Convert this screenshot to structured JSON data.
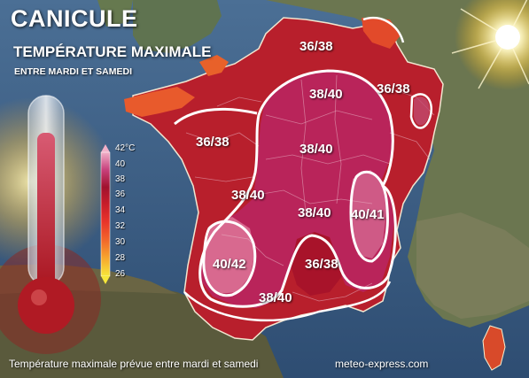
{
  "title": "CANICULE",
  "subtitle": "TEMPÉRATURE MAXIMALE",
  "tagline": "ENTRE MARDI ET SAMEDI",
  "footer_caption": "Température maximale prévue entre mardi et samedi",
  "footer_source": "meteo-express.com",
  "zones": [
    {
      "label": "36/38",
      "key": "north"
    },
    {
      "label": "36/38",
      "key": "northeast"
    },
    {
      "label": "38/40",
      "key": "paris"
    },
    {
      "label": "36/38",
      "key": "west"
    },
    {
      "label": "38/40",
      "key": "center"
    },
    {
      "label": "38/40",
      "key": "southwest-center"
    },
    {
      "label": "38/40",
      "key": "massif"
    },
    {
      "label": "40/41",
      "key": "rhone"
    },
    {
      "label": "40/42",
      "key": "aquitaine"
    },
    {
      "label": "36/38",
      "key": "south-center"
    },
    {
      "label": "38/40",
      "key": "pyrenees"
    }
  ],
  "legend": {
    "unit": "°C",
    "steps": [
      {
        "value": "42",
        "color": "#e59ab8"
      },
      {
        "value": "40",
        "color": "#c8427d"
      },
      {
        "value": "38",
        "color": "#a0122e"
      },
      {
        "value": "36",
        "color": "#c81d2a"
      },
      {
        "value": "34",
        "color": "#e8342a"
      },
      {
        "value": "32",
        "color": "#f2632b"
      },
      {
        "value": "30",
        "color": "#f7932d"
      },
      {
        "value": "28",
        "color": "#f7c52e"
      },
      {
        "value": "26",
        "color": "#f6e83a"
      }
    ]
  },
  "colors": {
    "sea": "#3d6088",
    "land_background": "#6a7a55",
    "heat_base": "#b8232f",
    "heat_core": "#a11446",
    "contour": "#ffffff"
  },
  "icons": [
    "sun-icon",
    "thermometer-icon"
  ]
}
